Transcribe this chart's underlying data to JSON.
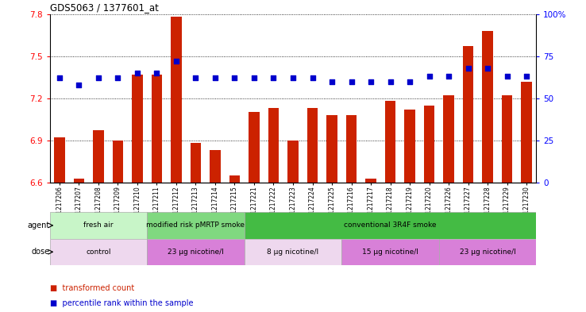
{
  "title": "GDS5063 / 1377601_at",
  "samples": [
    "GSM1217206",
    "GSM1217207",
    "GSM1217208",
    "GSM1217209",
    "GSM1217210",
    "GSM1217211",
    "GSM1217212",
    "GSM1217213",
    "GSM1217214",
    "GSM1217215",
    "GSM1217221",
    "GSM1217222",
    "GSM1217223",
    "GSM1217224",
    "GSM1217225",
    "GSM1217216",
    "GSM1217217",
    "GSM1217218",
    "GSM1217219",
    "GSM1217220",
    "GSM1217226",
    "GSM1217227",
    "GSM1217228",
    "GSM1217229",
    "GSM1217230"
  ],
  "bar_values": [
    6.92,
    6.63,
    6.97,
    6.9,
    7.37,
    7.37,
    7.78,
    6.88,
    6.83,
    6.65,
    7.1,
    7.13,
    6.9,
    7.13,
    7.08,
    7.08,
    6.63,
    7.18,
    7.12,
    7.15,
    7.22,
    7.57,
    7.68,
    7.22,
    7.32
  ],
  "percentile_values": [
    62,
    58,
    62,
    62,
    65,
    65,
    72,
    62,
    62,
    62,
    62,
    62,
    62,
    62,
    60,
    60,
    60,
    60,
    60,
    63,
    63,
    68,
    68,
    63,
    63
  ],
  "ymin": 6.6,
  "ymax": 7.8,
  "yticks": [
    6.6,
    6.9,
    7.2,
    7.5,
    7.8
  ],
  "right_yticks": [
    0,
    25,
    50,
    75,
    100
  ],
  "bar_color": "#cc2200",
  "dot_color": "#0000cc",
  "agent_groups": [
    {
      "label": "fresh air",
      "start": 0,
      "end": 4,
      "color": "#c8f5c8"
    },
    {
      "label": "modified risk pMRTP smoke",
      "start": 5,
      "end": 9,
      "color": "#80d880"
    },
    {
      "label": "conventional 3R4F smoke",
      "start": 10,
      "end": 24,
      "color": "#44bb44"
    }
  ],
  "dose_groups": [
    {
      "label": "control",
      "start": 0,
      "end": 4,
      "color": "#eed8ee"
    },
    {
      "label": "23 μg nicotine/l",
      "start": 5,
      "end": 9,
      "color": "#d880d8"
    },
    {
      "label": "8 μg nicotine/l",
      "start": 10,
      "end": 14,
      "color": "#eed8ee"
    },
    {
      "label": "15 μg nicotine/l",
      "start": 15,
      "end": 19,
      "color": "#d880d8"
    },
    {
      "label": "23 μg nicotine/l",
      "start": 20,
      "end": 24,
      "color": "#d880d8"
    }
  ],
  "legend_red_label": "transformed count",
  "legend_blue_label": "percentile rank within the sample",
  "legend_red_color": "#cc2200",
  "legend_blue_color": "#0000cc"
}
